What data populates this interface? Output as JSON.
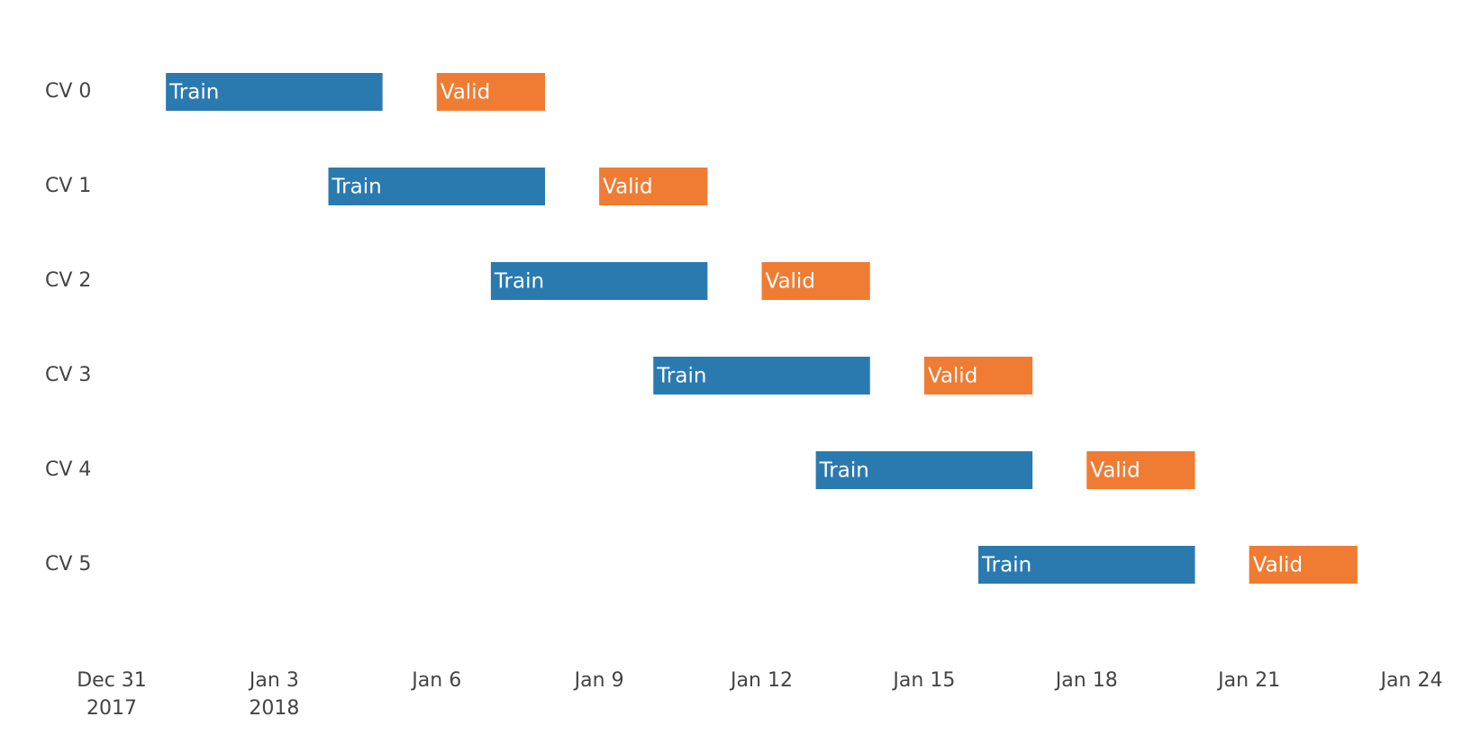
{
  "chart_data": {
    "type": "bar",
    "orientation": "horizontal",
    "title": "",
    "xlabel": "",
    "ylabel": "",
    "grid": false,
    "legend": "none",
    "categories": [
      "CV 0",
      "CV 1",
      "CV 2",
      "CV 3",
      "CV 4",
      "CV 5"
    ],
    "xlim": [
      "2017-12-31",
      "2018-01-24"
    ],
    "x_ticks": [
      {
        "date": "2017-12-31",
        "label": "Dec 31",
        "sublabel": "2017"
      },
      {
        "date": "2018-01-03",
        "label": "Jan 3",
        "sublabel": "2018"
      },
      {
        "date": "2018-01-06",
        "label": "Jan 6",
        "sublabel": ""
      },
      {
        "date": "2018-01-09",
        "label": "Jan 9",
        "sublabel": ""
      },
      {
        "date": "2018-01-12",
        "label": "Jan 12",
        "sublabel": ""
      },
      {
        "date": "2018-01-15",
        "label": "Jan 15",
        "sublabel": ""
      },
      {
        "date": "2018-01-18",
        "label": "Jan 18",
        "sublabel": ""
      },
      {
        "date": "2018-01-21",
        "label": "Jan 21",
        "sublabel": ""
      },
      {
        "date": "2018-01-24",
        "label": "Jan 24",
        "sublabel": ""
      }
    ],
    "colors": {
      "Train": "#2a7ab0",
      "Valid": "#f07c34"
    },
    "bars": [
      {
        "row": "CV 0",
        "label": "Train",
        "start": "2018-01-01",
        "end": "2018-01-05"
      },
      {
        "row": "CV 0",
        "label": "Valid",
        "start": "2018-01-06",
        "end": "2018-01-08"
      },
      {
        "row": "CV 1",
        "label": "Train",
        "start": "2018-01-04",
        "end": "2018-01-08"
      },
      {
        "row": "CV 1",
        "label": "Valid",
        "start": "2018-01-09",
        "end": "2018-01-11"
      },
      {
        "row": "CV 2",
        "label": "Train",
        "start": "2018-01-07",
        "end": "2018-01-11"
      },
      {
        "row": "CV 2",
        "label": "Valid",
        "start": "2018-01-12",
        "end": "2018-01-14"
      },
      {
        "row": "CV 3",
        "label": "Train",
        "start": "2018-01-10",
        "end": "2018-01-14"
      },
      {
        "row": "CV 3",
        "label": "Valid",
        "start": "2018-01-15",
        "end": "2018-01-17"
      },
      {
        "row": "CV 4",
        "label": "Train",
        "start": "2018-01-13",
        "end": "2018-01-17"
      },
      {
        "row": "CV 4",
        "label": "Valid",
        "start": "2018-01-18",
        "end": "2018-01-20"
      },
      {
        "row": "CV 5",
        "label": "Train",
        "start": "2018-01-16",
        "end": "2018-01-20"
      },
      {
        "row": "CV 5",
        "label": "Valid",
        "start": "2018-01-21",
        "end": "2018-01-23"
      }
    ]
  }
}
